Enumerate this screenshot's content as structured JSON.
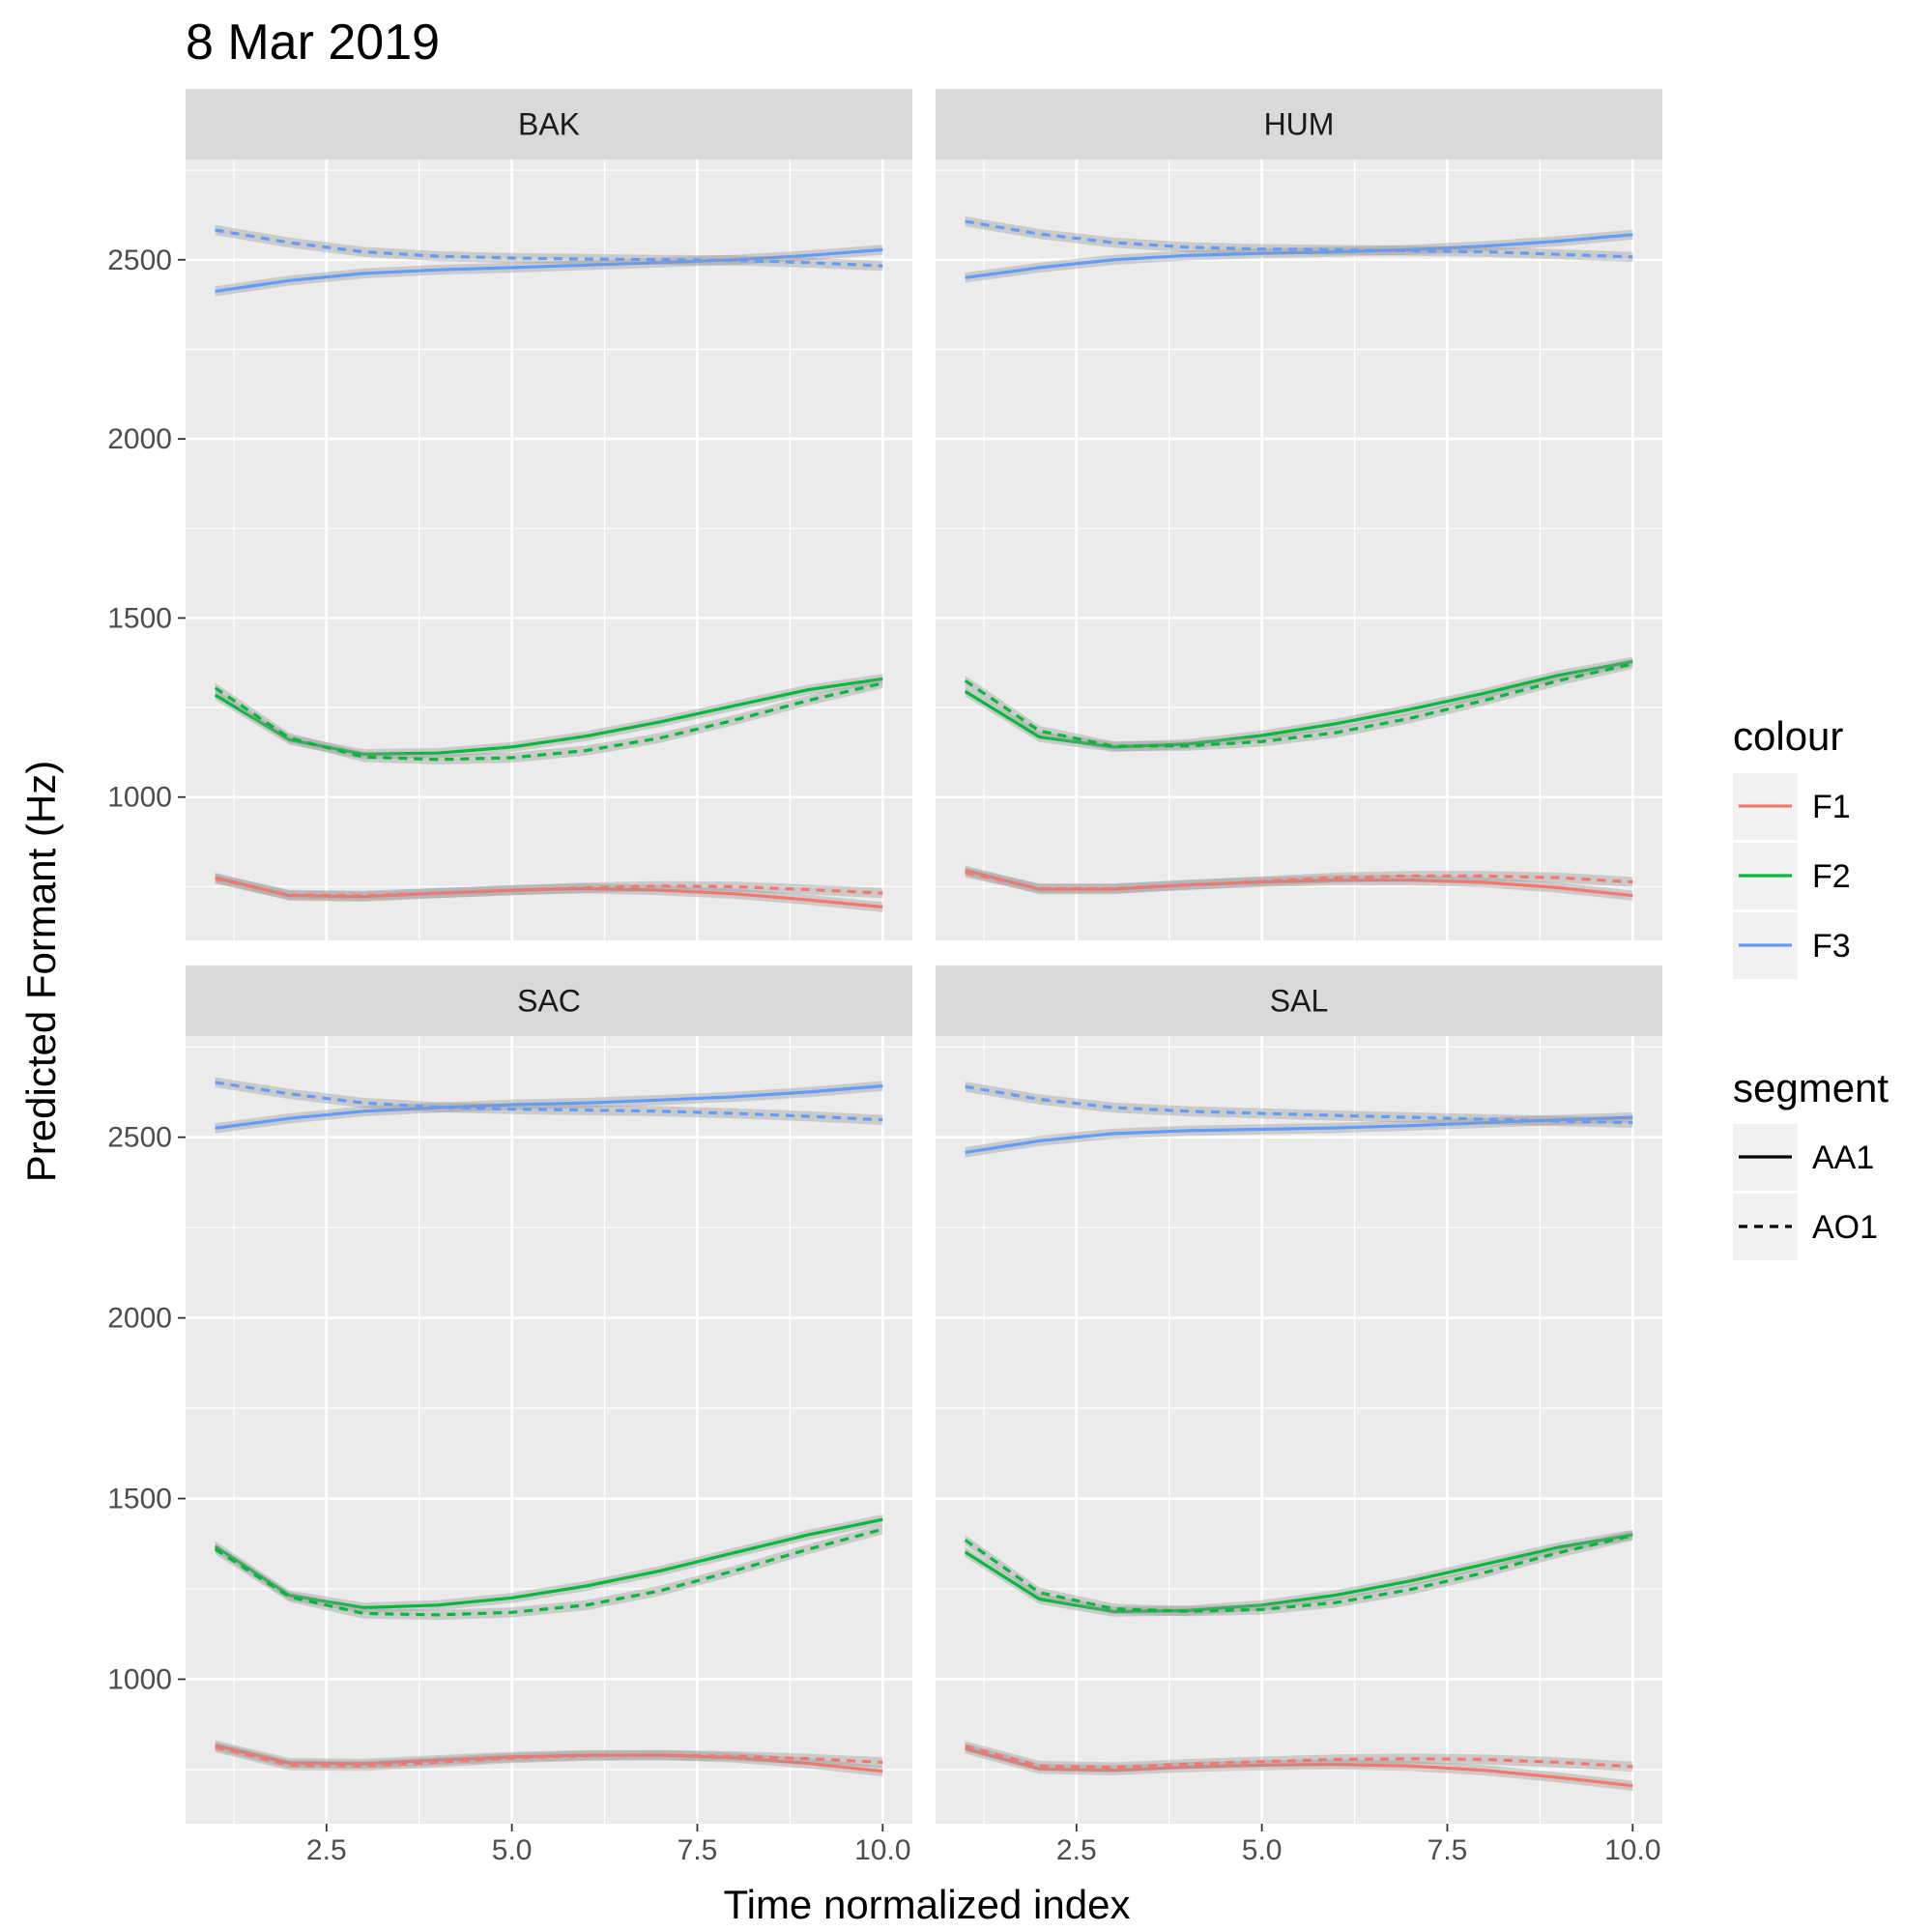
{
  "title": "8 Mar 2019",
  "chart_data": {
    "type": "line",
    "title": "8 Mar 2019",
    "xlabel": "Time normalized index",
    "ylabel": "Predicted Formant (Hz)",
    "xlim": [
      0.6,
      10.4
    ],
    "ylim": [
      600,
      2780
    ],
    "x_ticks": [
      2.5,
      5.0,
      7.5,
      10.0
    ],
    "x_tick_labels": [
      "2.5",
      "5.0",
      "7.5",
      "10.0"
    ],
    "y_ticks": [
      1000,
      1500,
      2000,
      2500
    ],
    "y_tick_labels": [
      "1000",
      "1500",
      "2000",
      "2500"
    ],
    "x": [
      1,
      2,
      3,
      4,
      5,
      6,
      7,
      8,
      9,
      10
    ],
    "grid": true,
    "confidence_band_halfwidth": 14,
    "colour_legend": {
      "title": "colour",
      "entries": [
        {
          "label": "F1",
          "color": "#F8766D"
        },
        {
          "label": "F2",
          "color": "#00BA38"
        },
        {
          "label": "F3",
          "color": "#619CFF"
        }
      ]
    },
    "segment_legend": {
      "title": "segment",
      "entries": [
        {
          "label": "AA1",
          "linetype": "solid"
        },
        {
          "label": "AO1",
          "linetype": "dashed"
        }
      ]
    },
    "panels": [
      {
        "strip": "BAK",
        "series": [
          {
            "formant": "F1",
            "segment": "AA1",
            "values": [
              775,
              725,
              722,
              732,
              740,
              745,
              740,
              730,
              713,
              693
            ]
          },
          {
            "formant": "F1",
            "segment": "AO1",
            "values": [
              772,
              727,
              725,
              732,
              740,
              747,
              752,
              750,
              742,
              732
            ]
          },
          {
            "formant": "F2",
            "segment": "AA1",
            "values": [
              1285,
              1160,
              1120,
              1123,
              1140,
              1170,
              1210,
              1255,
              1300,
              1330
            ]
          },
          {
            "formant": "F2",
            "segment": "AO1",
            "values": [
              1305,
              1165,
              1112,
              1105,
              1110,
              1130,
              1165,
              1215,
              1270,
              1318
            ]
          },
          {
            "formant": "F3",
            "segment": "AA1",
            "values": [
              2412,
              2442,
              2462,
              2472,
              2478,
              2485,
              2492,
              2500,
              2512,
              2528
            ]
          },
          {
            "formant": "F3",
            "segment": "AO1",
            "values": [
              2583,
              2548,
              2522,
              2510,
              2505,
              2502,
              2500,
              2498,
              2492,
              2483
            ]
          }
        ]
      },
      {
        "strip": "HUM",
        "series": [
          {
            "formant": "F1",
            "segment": "AA1",
            "values": [
              795,
              743,
              743,
              755,
              763,
              768,
              768,
              762,
              747,
              725
            ]
          },
          {
            "formant": "F1",
            "segment": "AO1",
            "values": [
              790,
              745,
              745,
              755,
              765,
              775,
              780,
              780,
              775,
              763
            ]
          },
          {
            "formant": "F2",
            "segment": "AA1",
            "values": [
              1295,
              1168,
              1140,
              1148,
              1172,
              1205,
              1245,
              1290,
              1340,
              1378
            ]
          },
          {
            "formant": "F2",
            "segment": "AO1",
            "values": [
              1325,
              1185,
              1142,
              1143,
              1155,
              1180,
              1220,
              1270,
              1325,
              1372
            ]
          },
          {
            "formant": "F3",
            "segment": "AA1",
            "values": [
              2450,
              2478,
              2500,
              2512,
              2518,
              2522,
              2528,
              2538,
              2552,
              2570
            ]
          },
          {
            "formant": "F3",
            "segment": "AO1",
            "values": [
              2607,
              2572,
              2548,
              2535,
              2530,
              2528,
              2525,
              2522,
              2515,
              2508
            ]
          }
        ]
      },
      {
        "strip": "SAC",
        "series": [
          {
            "formant": "F1",
            "segment": "AA1",
            "values": [
              817,
              768,
              766,
              776,
              785,
              790,
              790,
              783,
              767,
              745
            ]
          },
          {
            "formant": "F1",
            "segment": "AO1",
            "values": [
              812,
              762,
              760,
              770,
              782,
              788,
              790,
              787,
              780,
              770
            ]
          },
          {
            "formant": "F2",
            "segment": "AA1",
            "values": [
              1368,
              1232,
              1198,
              1205,
              1225,
              1258,
              1300,
              1350,
              1400,
              1442
            ]
          },
          {
            "formant": "F2",
            "segment": "AO1",
            "values": [
              1360,
              1228,
              1182,
              1178,
              1185,
              1205,
              1245,
              1300,
              1360,
              1415
            ]
          },
          {
            "formant": "F3",
            "segment": "AA1",
            "values": [
              2525,
              2552,
              2572,
              2582,
              2590,
              2595,
              2603,
              2612,
              2625,
              2642
            ]
          },
          {
            "formant": "F3",
            "segment": "AO1",
            "values": [
              2652,
              2620,
              2595,
              2583,
              2578,
              2575,
              2572,
              2566,
              2558,
              2548
            ]
          }
        ]
      },
      {
        "strip": "SAL",
        "series": [
          {
            "formant": "F1",
            "segment": "AA1",
            "values": [
              808,
              752,
              748,
              757,
              762,
              764,
              760,
              748,
              728,
              705
            ]
          },
          {
            "formant": "F1",
            "segment": "AO1",
            "values": [
              815,
              760,
              756,
              765,
              772,
              778,
              780,
              778,
              770,
              758
            ]
          },
          {
            "formant": "F2",
            "segment": "AA1",
            "values": [
              1352,
              1222,
              1187,
              1190,
              1205,
              1233,
              1272,
              1318,
              1365,
              1400
            ]
          },
          {
            "formant": "F2",
            "segment": "AO1",
            "values": [
              1385,
              1240,
              1195,
              1188,
              1193,
              1212,
              1248,
              1295,
              1350,
              1398
            ]
          },
          {
            "formant": "F3",
            "segment": "AA1",
            "values": [
              2458,
              2490,
              2510,
              2518,
              2522,
              2526,
              2532,
              2540,
              2548,
              2555
            ]
          },
          {
            "formant": "F3",
            "segment": "AO1",
            "values": [
              2640,
              2605,
              2582,
              2572,
              2566,
              2560,
              2555,
              2550,
              2545,
              2540
            ]
          }
        ]
      }
    ]
  }
}
